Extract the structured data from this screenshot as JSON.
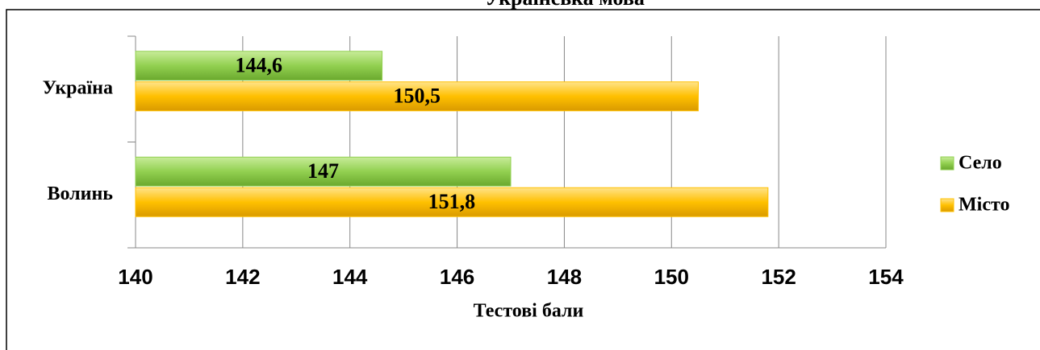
{
  "chart_data": {
    "type": "bar",
    "orientation": "horizontal",
    "title": "Українська мова",
    "categories": [
      "Україна",
      "Волинь"
    ],
    "series": [
      {
        "name": "Село",
        "color": "#92d050",
        "values": [
          144.6,
          147
        ],
        "value_labels": [
          "144,6",
          "147"
        ]
      },
      {
        "name": "Місто",
        "color": "#ffc000",
        "values": [
          150.5,
          151.8
        ],
        "value_labels": [
          "150,5",
          "151,8"
        ]
      }
    ],
    "xlim": [
      140,
      154
    ],
    "xticks": [
      140,
      142,
      144,
      146,
      148,
      150,
      152,
      154
    ],
    "xlabel": "Тестові бали",
    "grid": true,
    "legend": "right"
  }
}
